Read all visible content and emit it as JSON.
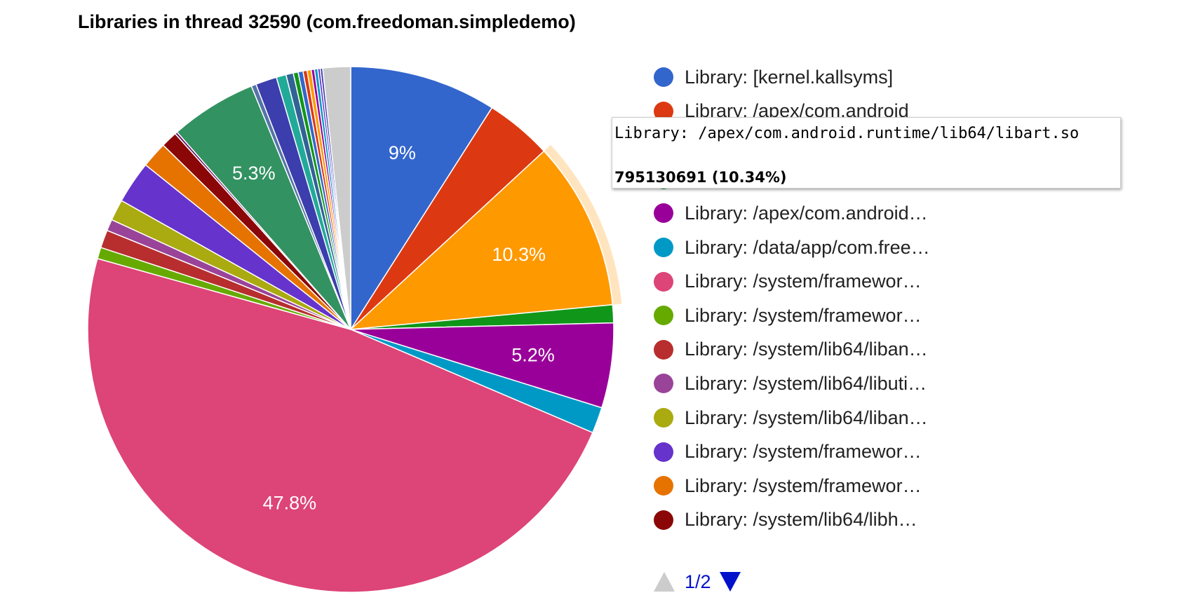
{
  "chart_data": {
    "type": "pie",
    "title": "Libraries in thread 32590 (com.freedoman.simpledemo)",
    "slices": [
      {
        "label": "Library: [kernel.kallsyms]",
        "percent": 9.0,
        "color": "#3366cc",
        "value_label": "9%"
      },
      {
        "label": "Library: /apex/com.android",
        "percent": 4.1,
        "color": "#dc3912",
        "value_label": ""
      },
      {
        "label": "Library: /apex/com.android.runtime/lib64/libart.so",
        "percent": 10.34,
        "color": "#ff9900",
        "value_label": "10.3%"
      },
      {
        "label": "",
        "percent": 1.1,
        "color": "#109618",
        "value_label": ""
      },
      {
        "label": "Library: /apex/com.android…",
        "percent": 5.2,
        "color": "#990099",
        "value_label": "5.2%"
      },
      {
        "label": "Library: /data/app/com.free…",
        "percent": 1.6,
        "color": "#0099c6",
        "value_label": ""
      },
      {
        "label": "Library: /system/framewor…",
        "percent": 47.8,
        "color": "#dd4477",
        "value_label": "47.8%"
      },
      {
        "label": "Library: /system/framewor…",
        "percent": 0.7,
        "color": "#66aa00",
        "value_label": ""
      },
      {
        "label": "Library: /system/lib64/liban…",
        "percent": 1.1,
        "color": "#b82e2e",
        "value_label": ""
      },
      {
        "label": "Library: /system/lib64/libuti…",
        "percent": 0.7,
        "color": "#994499",
        "value_label": ""
      },
      {
        "label": "Library: /system/lib64/liban…",
        "percent": 1.3,
        "color": "#aaaa11",
        "value_label": ""
      },
      {
        "label": "Library: /system/framewor…",
        "percent": 2.6,
        "color": "#6633cc",
        "value_label": ""
      },
      {
        "label": "Library: /system/framewor…",
        "percent": 1.6,
        "color": "#e67300",
        "value_label": ""
      },
      {
        "label": "Library: /system/lib64/libh…",
        "percent": 1.0,
        "color": "#8b0707",
        "value_label": ""
      },
      {
        "label": "",
        "percent": 0.15,
        "color": "#651067",
        "value_label": ""
      },
      {
        "label": "",
        "percent": 5.3,
        "color": "#329262",
        "value_label": "5.3%"
      },
      {
        "label": "",
        "percent": 0.3,
        "color": "#5574a6",
        "value_label": ""
      },
      {
        "label": "",
        "percent": 1.3,
        "color": "#3b3eac",
        "value_label": ""
      },
      {
        "label": "",
        "percent": 0.6,
        "color": "#22aa99",
        "value_label": ""
      },
      {
        "label": "",
        "percent": 0.45,
        "color": "#316395",
        "value_label": ""
      },
      {
        "label": "",
        "percent": 0.3,
        "color": "#109618",
        "value_label": ""
      },
      {
        "label": "",
        "percent": 0.3,
        "color": "#3366cc",
        "value_label": ""
      },
      {
        "label": "",
        "percent": 0.25,
        "color": "#dc3912",
        "value_label": ""
      },
      {
        "label": "",
        "percent": 0.25,
        "color": "#ff9900",
        "value_label": ""
      },
      {
        "label": "",
        "percent": 0.2,
        "color": "#990099",
        "value_label": ""
      },
      {
        "label": "",
        "percent": 0.2,
        "color": "#0099c6",
        "value_label": ""
      },
      {
        "label": "",
        "percent": 0.15,
        "color": "#6633cc",
        "value_label": ""
      },
      {
        "label": "",
        "percent": 0.15,
        "color": "#3b3eac",
        "value_label": ""
      },
      {
        "label": "",
        "percent": 1.7,
        "color": "#cccccc",
        "value_label": ""
      }
    ],
    "highlighted_slice": 2,
    "legend": {
      "placement": "right",
      "items": [
        {
          "label": "Library: [kernel.kallsyms]",
          "color": "#3366cc"
        },
        {
          "label": "Library: /apex/com.android",
          "color": "#dc3912"
        },
        {
          "label": "",
          "color": "#ff9900"
        },
        {
          "label": "",
          "color": "#109618"
        },
        {
          "label": "Library: /apex/com.android…",
          "color": "#990099"
        },
        {
          "label": "Library: /data/app/com.free…",
          "color": "#0099c6"
        },
        {
          "label": "Library: /system/framewor…",
          "color": "#dd4477"
        },
        {
          "label": "Library: /system/framewor…",
          "color": "#66aa00"
        },
        {
          "label": "Library: /system/lib64/liban…",
          "color": "#b82e2e"
        },
        {
          "label": "Library: /system/lib64/libuti…",
          "color": "#994499"
        },
        {
          "label": "Library: /system/lib64/liban…",
          "color": "#aaaa11"
        },
        {
          "label": "Library: /system/framewor…",
          "color": "#6633cc"
        },
        {
          "label": "Library: /system/framewor…",
          "color": "#e67300"
        },
        {
          "label": "Library: /system/lib64/libh…",
          "color": "#8b0707"
        }
      ]
    }
  },
  "tooltip": {
    "label": "Library: /apex/com.android.runtime/lib64/libart.so",
    "value": "795130691 (10.34%)"
  },
  "pager": {
    "text": "1/2"
  }
}
